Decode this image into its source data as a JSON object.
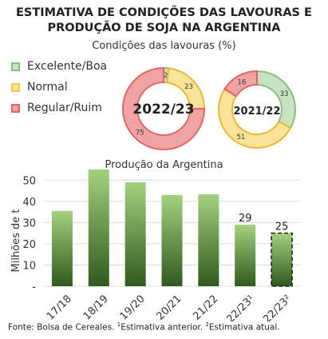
{
  "header": {
    "title_line1": "ESTIMATIVA DE CONDIÇÕES DAS LAVOURAS E",
    "title_line2": "PRODUÇÃO DE SOJA NA ARGENTINA"
  },
  "conditions": {
    "subtitle": "Condições das lavouras (%)",
    "legend": [
      {
        "label": "Excelente/Boa",
        "color": "#88c080",
        "fill": "#c7e3c0"
      },
      {
        "label": "Normal",
        "color": "#f2c94c",
        "fill": "#fbe39a"
      },
      {
        "label": "Regular/Ruim",
        "color": "#e06666",
        "fill": "#f0a3a3"
      }
    ]
  },
  "chart_data": [
    {
      "type": "pie",
      "title": "2022/23",
      "categories": [
        "Excelente/Boa",
        "Normal",
        "Regular/Ruim"
      ],
      "values": [
        2,
        23,
        75
      ],
      "colors": [
        "#c7e3c0",
        "#fbe39a",
        "#f0a3a3"
      ],
      "strokes": [
        "#88c080",
        "#e8b930",
        "#e06666"
      ]
    },
    {
      "type": "pie",
      "title": "2021/22",
      "categories": [
        "Excelente/Boa",
        "Normal",
        "Regular/Ruim"
      ],
      "values": [
        33,
        51,
        16
      ],
      "colors": [
        "#c7e3c0",
        "#fbe39a",
        "#f0a3a3"
      ],
      "strokes": [
        "#88c080",
        "#e8b930",
        "#e06666"
      ]
    },
    {
      "type": "bar",
      "title": "Produção da Argentina",
      "ylabel": "Milhões de t",
      "categories": [
        "17/18",
        "18/19",
        "19/20",
        "20/21",
        "21/22",
        "22/23¹",
        "22/23²"
      ],
      "values": [
        35.5,
        55.3,
        49,
        43,
        43.3,
        29,
        25
      ],
      "data_labels": [
        "",
        "",
        "",
        "",
        "",
        "29",
        "25"
      ],
      "ylim": [
        0,
        55
      ],
      "yticks": [
        {
          "value": 0,
          "label": "-"
        },
        {
          "value": 10,
          "label": "10"
        },
        {
          "value": 20,
          "label": "20"
        },
        {
          "value": 30,
          "label": "30"
        },
        {
          "value": 40,
          "label": "40"
        },
        {
          "value": 50,
          "label": "50"
        }
      ],
      "grid": true,
      "highlight_last": true,
      "gradient": [
        "#a5d17e",
        "#2f5a1d"
      ]
    }
  ],
  "footnote": {
    "prefix": "Fonte: Bolsa de Cereales. ",
    "note1_mark": "1",
    "note1_text": "Estimativa anterior. ",
    "note2_mark": "2",
    "note2_text": "Estimativa atual."
  }
}
